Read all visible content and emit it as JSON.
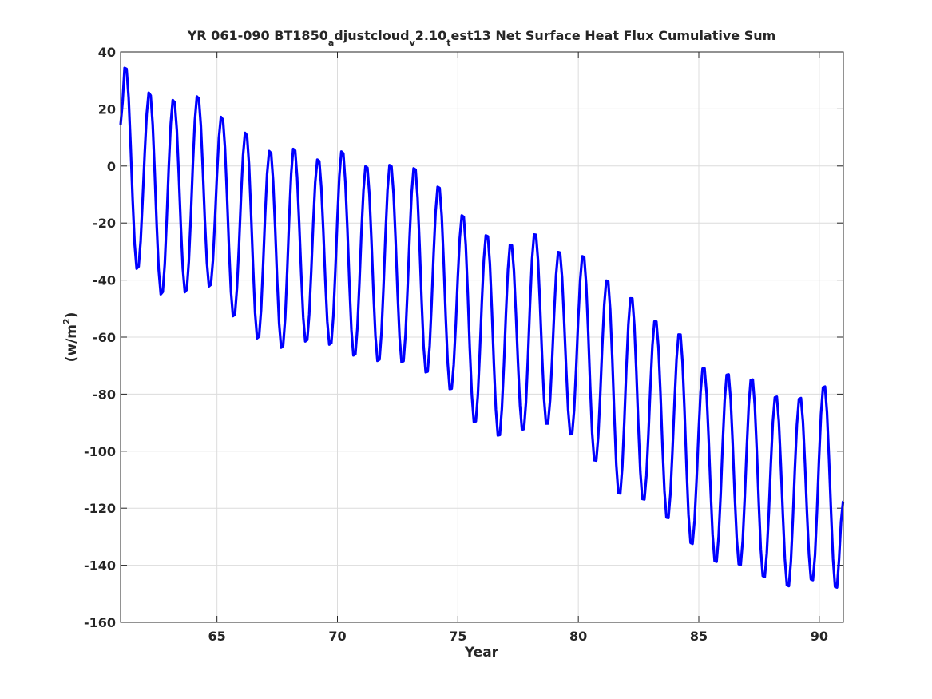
{
  "chart_data": {
    "type": "line",
    "title": {
      "prefix": "YR 061-090 BT1850",
      "sub1": "a",
      "mid1": "djustcloud",
      "sub2": "v",
      "mid2": "2.10",
      "sub3": "t",
      "suffix": "est13 Net Surface Heat Flux  Cumulative Sum"
    },
    "xlabel": "Year",
    "ylabel": {
      "base": "(w/m",
      "sup": "2",
      "close": ")"
    },
    "xlim": [
      61,
      91
    ],
    "ylim": [
      -160,
      40
    ],
    "xticks": [
      65,
      70,
      75,
      80,
      85,
      90
    ],
    "yticks": [
      40,
      20,
      0,
      -20,
      -40,
      -60,
      -80,
      -100,
      -120,
      -140,
      -160
    ],
    "grid": true,
    "line_color": "#0000ff",
    "series": [
      {
        "name": "",
        "start_year": 61.042,
        "step_years": 0.0833,
        "note_peaks": "annual maxima near year+0.2, minima near year+0.7",
        "peaks": [
          [
            61.2,
            35.8
          ],
          [
            62.2,
            26.4
          ],
          [
            63.2,
            23.9
          ],
          [
            64.2,
            25.2
          ],
          [
            65.2,
            17.9
          ],
          [
            66.2,
            12.4
          ],
          [
            67.2,
            6.1
          ],
          [
            68.2,
            6.9
          ],
          [
            69.2,
            3.1
          ],
          [
            70.2,
            6.0
          ],
          [
            71.2,
            0.8
          ],
          [
            72.2,
            1.3
          ],
          [
            73.2,
            0.2
          ],
          [
            74.2,
            -6.3
          ],
          [
            75.2,
            -16.4
          ],
          [
            76.2,
            -23.3
          ],
          [
            77.2,
            -26.6
          ],
          [
            78.2,
            -22.9
          ],
          [
            79.2,
            -29.2
          ],
          [
            80.2,
            -30.6
          ],
          [
            81.2,
            -39.1
          ],
          [
            82.2,
            -45.2
          ],
          [
            83.2,
            -53.4
          ],
          [
            84.2,
            -57.9
          ],
          [
            85.2,
            -69.9
          ],
          [
            86.2,
            -72.0
          ],
          [
            87.2,
            -73.8
          ],
          [
            88.2,
            -79.9
          ],
          [
            89.2,
            -80.4
          ],
          [
            90.2,
            -76.3
          ]
        ],
        "troughs": [
          [
            61.7,
            -36.8
          ],
          [
            62.7,
            -45.8
          ],
          [
            63.7,
            -45.0
          ],
          [
            64.7,
            -43.0
          ],
          [
            65.7,
            -53.5
          ],
          [
            66.7,
            -61.3
          ],
          [
            67.7,
            -64.6
          ],
          [
            68.7,
            -62.4
          ],
          [
            69.7,
            -63.5
          ],
          [
            70.7,
            -67.4
          ],
          [
            71.7,
            -69.3
          ],
          [
            72.7,
            -69.8
          ],
          [
            73.7,
            -73.4
          ],
          [
            74.7,
            -79.3
          ],
          [
            75.7,
            -90.8
          ],
          [
            76.7,
            -95.6
          ],
          [
            77.7,
            -93.5
          ],
          [
            78.7,
            -91.4
          ],
          [
            79.7,
            -95.1
          ],
          [
            80.7,
            -104.4
          ],
          [
            81.7,
            -116.0
          ],
          [
            82.7,
            -118.0
          ],
          [
            83.7,
            -124.5
          ],
          [
            84.7,
            -133.5
          ],
          [
            85.7,
            -139.8
          ],
          [
            86.7,
            -140.9
          ],
          [
            87.7,
            -145.1
          ],
          [
            88.7,
            -148.3
          ],
          [
            89.7,
            -146.2
          ],
          [
            90.7,
            -149.0
          ]
        ],
        "start_value": 14.5,
        "end": [
          91.0,
          -117.6
        ]
      }
    ]
  }
}
